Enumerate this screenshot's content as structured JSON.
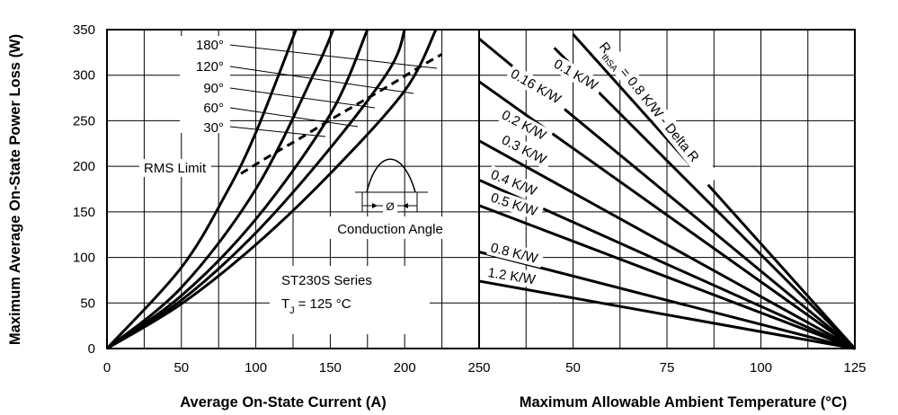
{
  "chart_data": [
    {
      "type": "line",
      "xlabel": "Average On-State Current (A)",
      "ylabel": "Maximum Average On-State Power Loss (W)",
      "xlim": [
        0,
        250
      ],
      "ylim": [
        0,
        350
      ],
      "x_ticks": [
        "0",
        "50",
        "100",
        "150",
        "200",
        "250"
      ],
      "y_ticks": [
        "0",
        "50",
        "100",
        "150",
        "200",
        "250",
        "300",
        "350"
      ],
      "grid": true,
      "series": [
        {
          "name": "180°",
          "x": [
            0,
            50,
            100,
            150,
            200,
            221
          ],
          "y": [
            0,
            49,
            114,
            192,
            283,
            350
          ]
        },
        {
          "name": "120°",
          "x": [
            0,
            50,
            100,
            150,
            190,
            200
          ],
          "y": [
            0,
            53,
            127,
            220,
            307,
            350
          ]
        },
        {
          "name": "90°",
          "x": [
            0,
            50,
            100,
            150,
            175
          ],
          "y": [
            0,
            58,
            142,
            257,
            350
          ]
        },
        {
          "name": "60°",
          "x": [
            0,
            50,
            100,
            140,
            152
          ],
          "y": [
            0,
            67,
            175,
            305,
            350
          ]
        },
        {
          "name": "30°",
          "x": [
            0,
            50,
            80,
            100,
            127
          ],
          "y": [
            0,
            89,
            170,
            237,
            350
          ]
        },
        {
          "name": "RMS Limit",
          "x": [
            90,
            110,
            130,
            150,
            170,
            190,
            210,
            225
          ],
          "y": [
            192,
            212,
            231,
            251,
            270,
            289,
            309,
            323
          ]
        }
      ],
      "annotations": {
        "rms_limit": "RMS Limit",
        "conduction_angle": "Conduction Angle",
        "phi": "Ø",
        "series_title": "ST230S Series",
        "tj_prefix": "T",
        "tj_sub": "J",
        "tj_value": "= 125 °C"
      }
    },
    {
      "type": "line",
      "xlabel": "Maximum Allowable Ambient Temperature (°C)",
      "xlim": [
        25,
        125
      ],
      "ylim": [
        0,
        350
      ],
      "x_ticks": [
        "25",
        "50",
        "75",
        "100",
        "125"
      ],
      "grid": true,
      "series": [
        {
          "name": "R thSA = 0.8 K/W - Delta R",
          "x": [
            50,
            125
          ],
          "y": [
            345,
            0
          ]
        },
        {
          "name": "0.1 K/W",
          "x": [
            45,
            125
          ],
          "y": [
            330,
            0
          ]
        },
        {
          "name": "0.16 K/W",
          "x": [
            25,
            125
          ],
          "y": [
            340,
            0
          ]
        },
        {
          "name": "0.2 K/W",
          "x": [
            25,
            125
          ],
          "y": [
            293,
            0
          ]
        },
        {
          "name": "0.3 K/W",
          "x": [
            25,
            125
          ],
          "y": [
            228,
            0
          ]
        },
        {
          "name": "0.4 K/W",
          "x": [
            25,
            125
          ],
          "y": [
            185,
            0
          ]
        },
        {
          "name": "0.5 K/W",
          "x": [
            25,
            125
          ],
          "y": [
            157,
            0
          ]
        },
        {
          "name": "0.8 K/W",
          "x": [
            25,
            125
          ],
          "y": [
            106,
            0
          ]
        },
        {
          "name": "1.2 K/W",
          "x": [
            25,
            125
          ],
          "y": [
            74,
            0
          ]
        }
      ],
      "labels": {
        "r_main": "R",
        "r_sub": "thSA",
        "r_rest": " = 0.8 K/W - Delta R",
        "k01": "0.1 K/W",
        "k016": "0.16 K/W",
        "k02": "0.2 K/W",
        "k03": "0.3 K/W",
        "k04": "0.4 K/W",
        "k05": "0.5 K/W",
        "k08": "0.8 K/W",
        "k12": "1.2 K/W"
      }
    }
  ]
}
